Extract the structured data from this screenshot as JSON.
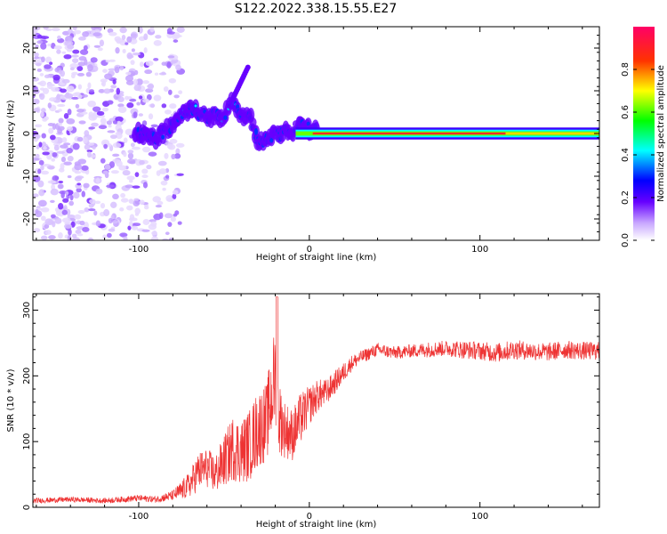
{
  "figure_title": "S122.2022.338.15.55.E27",
  "chart_data": [
    {
      "type": "heatmap",
      "title": "",
      "xlabel": "Height of straight line (km)",
      "ylabel": "Frequency (Hz)",
      "xlim": [
        -162,
        170
      ],
      "ylim": [
        -25,
        25
      ],
      "xticks": [
        -100,
        0,
        100
      ],
      "yticks": [
        -20,
        -10,
        0,
        10,
        20
      ],
      "colorbar": {
        "label": "Normalized spectral amplitude",
        "range": [
          0,
          1
        ],
        "ticks": [
          0.0,
          0.2,
          0.4,
          0.6,
          0.8
        ]
      },
      "ridge": {
        "description_points_x": [
          -100,
          -90,
          -80,
          -70,
          -60,
          -50,
          -45,
          -40,
          -35,
          -30,
          -25,
          -20,
          -15,
          -10,
          -5,
          0,
          10,
          20,
          50,
          100,
          150,
          170
        ],
        "description_points_y": [
          0,
          -1,
          2,
          6,
          4,
          4,
          8,
          4,
          4,
          -2,
          -1,
          0,
          0,
          1,
          2,
          1,
          0,
          0,
          0,
          0,
          0,
          0
        ]
      }
    },
    {
      "type": "line",
      "title": "",
      "xlabel": "Height of straight line (km)",
      "ylabel": "SNR (10 * v/v)",
      "xlim": [
        -162,
        170
      ],
      "ylim": [
        0,
        325
      ],
      "xticks": [
        -100,
        0,
        100
      ],
      "yticks": [
        0,
        100,
        200,
        300
      ],
      "series": [
        {
          "color": "#ee3333",
          "x": [
            -162,
            -140,
            -120,
            -100,
            -90,
            -80,
            -75,
            -70,
            -65,
            -60,
            -55,
            -50,
            -45,
            -40,
            -35,
            -30,
            -25,
            -20,
            -18,
            -15,
            -10,
            -5,
            0,
            5,
            10,
            15,
            20,
            25,
            30,
            40,
            50,
            60,
            70,
            80,
            90,
            100,
            110,
            120,
            130,
            140,
            150,
            160,
            170
          ],
          "y": [
            10,
            12,
            10,
            14,
            12,
            18,
            25,
            35,
            55,
            60,
            50,
            70,
            90,
            85,
            95,
            120,
            130,
            200,
            140,
            120,
            110,
            135,
            155,
            170,
            175,
            190,
            205,
            220,
            228,
            240,
            235,
            238,
            240,
            242,
            240,
            238,
            235,
            240,
            238,
            236,
            240,
            238,
            238
          ],
          "noise": [
            4,
            4,
            4,
            5,
            5,
            8,
            15,
            20,
            30,
            30,
            30,
            40,
            50,
            50,
            55,
            60,
            60,
            80,
            60,
            45,
            40,
            40,
            30,
            25,
            20,
            18,
            15,
            12,
            10,
            10,
            10,
            10,
            12,
            12,
            14,
            14,
            15,
            15,
            14,
            14,
            14,
            14,
            14
          ]
        }
      ]
    }
  ]
}
